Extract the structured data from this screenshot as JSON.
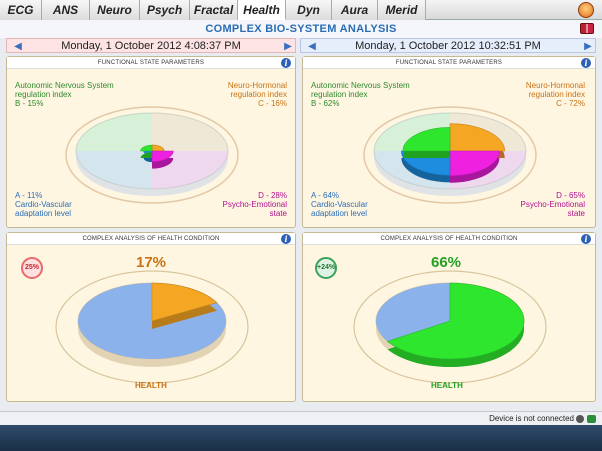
{
  "tabs": [
    {
      "label": "ECG",
      "active": false
    },
    {
      "label": "ANS",
      "active": false
    },
    {
      "label": "Neuro",
      "active": false
    },
    {
      "label": "Psych",
      "active": false
    },
    {
      "label": "Fractal",
      "active": false
    },
    {
      "label": "Health",
      "active": true
    },
    {
      "label": "Dyn",
      "active": false
    },
    {
      "label": "Aura",
      "active": false
    },
    {
      "label": "Merid",
      "active": false
    }
  ],
  "title": "COMPLEX BIO-SYSTEM ANALYSIS",
  "dates": {
    "left": "Monday, 1 October 2012 4:08:37 PM",
    "right": "Monday, 1 October 2012 10:32:51 PM"
  },
  "functional": {
    "header": "FUNCTIONAL STATE PARAMETERS",
    "left": {
      "b_label": "Autonomic Nervous System",
      "b_label2": "regulation index",
      "b_value": "B - 15%",
      "c_label": "Neuro-Hormonal",
      "c_label2": "regulation index",
      "c_value": "C - 16%",
      "a_value": "A - 11%",
      "a_label": "Cardio-Vascular",
      "a_label2": "adaptation level",
      "d_value": "D - 28%",
      "d_label": "Psycho-Emotional",
      "d_label2": "state",
      "values": {
        "A": 11,
        "B": 15,
        "C": 16,
        "D": 28
      }
    },
    "right": {
      "b_label": "Autonomic Nervous System",
      "b_label2": "regulation index",
      "b_value": "B - 62%",
      "c_label": "Neuro-Hormonal",
      "c_label2": "regulation index",
      "c_value": "C - 72%",
      "a_value": "A - 64%",
      "a_label": "Cardio-Vascular",
      "a_label2": "adaptation level",
      "d_value": "D - 65%",
      "d_label": "Psycho-Emotional",
      "d_label2": "state",
      "values": {
        "A": 64,
        "B": 62,
        "C": 72,
        "D": 65
      }
    }
  },
  "health": {
    "header": "COMPLEX ANALYSIS OF HEALTH CONDITION",
    "left": {
      "percent": "17%",
      "badge": "25%",
      "label": "HEALTH",
      "value": 17
    },
    "right": {
      "percent": "66%",
      "badge": "+24%",
      "label": "HEALTH",
      "value": 66
    }
  },
  "status": "Device is not connected",
  "colors": {
    "A": "#1e8de0",
    "B": "#2ee62e",
    "C": "#f5a623",
    "D": "#f020e0",
    "health_left": "#f5a623",
    "health_right": "#2ee62e",
    "health_rest": "#7aa8f0"
  }
}
